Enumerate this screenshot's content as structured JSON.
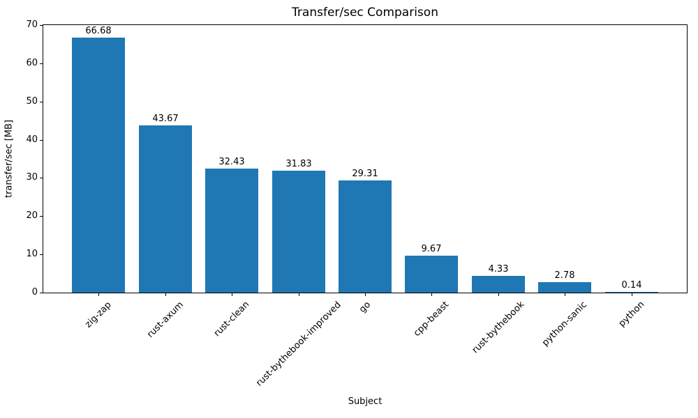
{
  "chart_data": {
    "type": "bar",
    "title": "Transfer/sec Comparison",
    "xlabel": "Subject",
    "ylabel": "transfer/sec [MB]",
    "categories": [
      "zig-zap",
      "rust-axum",
      "rust-clean",
      "rust-bythebook-improved",
      "go",
      "cpp-beast",
      "rust-bythebook",
      "python-sanic",
      "python"
    ],
    "values": [
      66.68,
      43.67,
      32.43,
      31.83,
      29.31,
      9.67,
      4.33,
      2.78,
      0.14
    ],
    "bar_labels": [
      "66.68",
      "43.67",
      "32.43",
      "31.83",
      "29.31",
      "9.67",
      "4.33",
      "2.78",
      "0.14"
    ],
    "yticks": [
      0,
      10,
      20,
      30,
      40,
      50,
      60,
      70
    ],
    "ylim": [
      0,
      70
    ],
    "bar_color": "#1f77b4",
    "axis_color": "#000000",
    "text_color": "#000000",
    "background_color": "#ffffff",
    "grid": false,
    "legend": null,
    "x_tick_rotation_deg": 45
  }
}
